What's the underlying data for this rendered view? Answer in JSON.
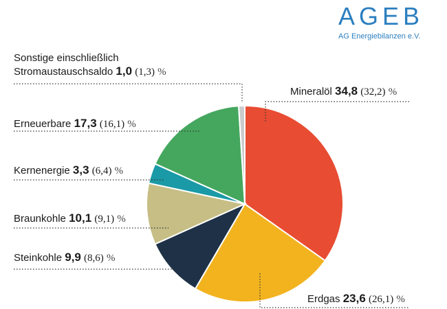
{
  "logo": {
    "title": "AGEB",
    "subtitle": "AG Energiebilanzen e.V."
  },
  "chart_data": {
    "type": "pie",
    "unit": "%",
    "slices": [
      {
        "key": "mineraloel",
        "label": "Mineralöl",
        "value": 34.8,
        "value_text": "34,8",
        "prev": 32.2,
        "prev_text": "(32,2)",
        "color": "#e84c32"
      },
      {
        "key": "erdgas",
        "label": "Erdgas",
        "value": 23.6,
        "value_text": "23,6",
        "prev": 26.1,
        "prev_text": "(26,1)",
        "color": "#f2b31f"
      },
      {
        "key": "steinkohle",
        "label": "Steinkohle",
        "value": 9.9,
        "value_text": "9,9",
        "prev": 8.6,
        "prev_text": "(8,6)",
        "color": "#1e3146"
      },
      {
        "key": "braunkohle",
        "label": "Braunkohle",
        "value": 10.1,
        "value_text": "10,1",
        "prev": 9.1,
        "prev_text": "(9,1)",
        "color": "#c6be85"
      },
      {
        "key": "kernenergie",
        "label": "Kernenergie",
        "value": 3.3,
        "value_text": "3,3",
        "prev": 6.4,
        "prev_text": "(6,4)",
        "color": "#1a9aa6"
      },
      {
        "key": "erneuerbare",
        "label": "Erneuerbare",
        "value": 17.3,
        "value_text": "17,3",
        "prev": 16.1,
        "prev_text": "(16,1)",
        "color": "#45a75e"
      },
      {
        "key": "sonstige",
        "label": "Sonstige einschließlich Stromaustauschsaldo",
        "label_line1": "Sonstige einschließlich",
        "label_line2": "Stromaustauschsaldo",
        "value": 1.0,
        "value_text": "1,0",
        "prev": 1.3,
        "prev_text": "(1,3)",
        "color": "#c9cbcd"
      }
    ]
  }
}
